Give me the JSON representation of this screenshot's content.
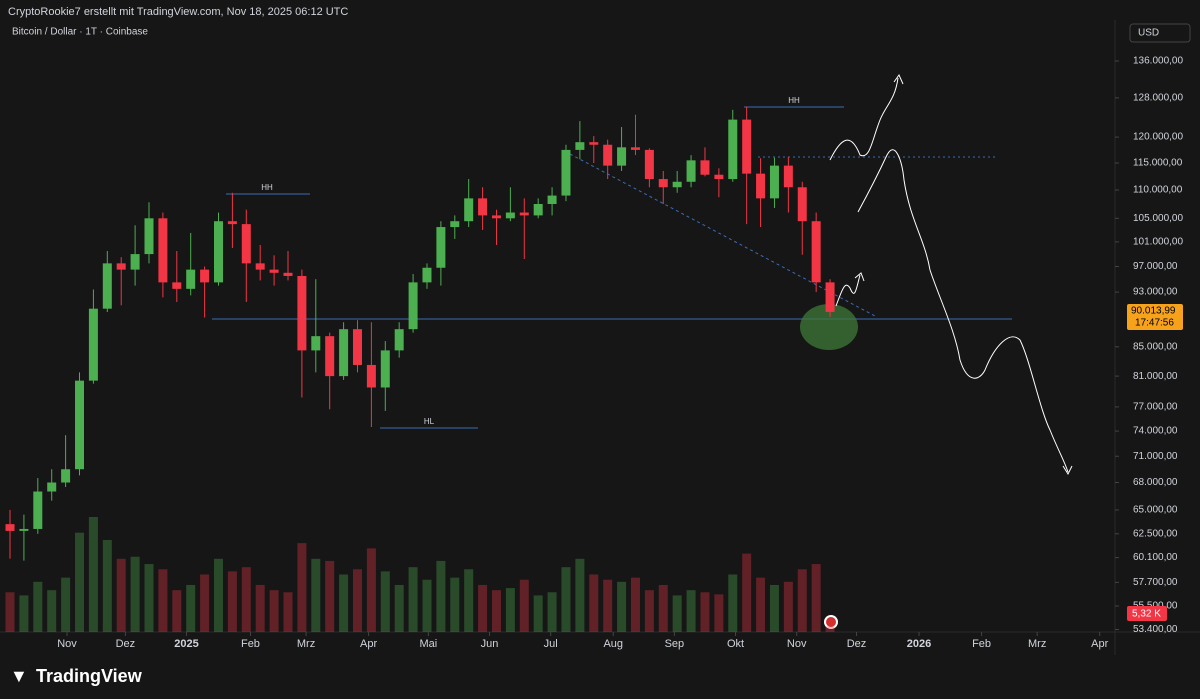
{
  "header": "CryptoRookie7 erstellt mit TradingView.com, Nov 18, 2025 06:12 UTC",
  "footer": "TradingView",
  "chart_data": {
    "type": "candlestick",
    "title": "Bitcoin / Dollar · 1T · Coinbase",
    "currency": "USD",
    "log_scale": true,
    "up_color": "#4caf50",
    "down_color": "#f23645",
    "open": [
      63500,
      62800,
      63000,
      67000,
      68000,
      69500,
      80400,
      90500,
      97500,
      96500,
      99000,
      105000,
      94500,
      93500,
      96500,
      94500,
      104500,
      104000,
      97500,
      96500,
      96000,
      95500,
      84500,
      86500,
      81000,
      87500,
      82500,
      79500,
      84500,
      87500,
      94500,
      96800,
      103500,
      104500,
      108500,
      105500,
      105000,
      106000,
      105500,
      107500,
      109000,
      117500,
      119000,
      118500,
      114500,
      118000,
      117500,
      112000,
      110500,
      111500,
      115500,
      112800,
      112000,
      123500,
      113000,
      108500,
      114500,
      110500,
      104500,
      94500
    ],
    "high": [
      65000,
      64500,
      68500,
      69500,
      73500,
      81500,
      93400,
      99500,
      98500,
      103800,
      107800,
      106000,
      99500,
      102500,
      97000,
      106000,
      109500,
      106500,
      100500,
      98800,
      99500,
      96500,
      95000,
      87000,
      88500,
      88800,
      88500,
      85800,
      88500,
      95800,
      97500,
      104500,
      105500,
      112000,
      110500,
      106500,
      110500,
      108500,
      108500,
      110500,
      118500,
      123200,
      120200,
      119500,
      122000,
      124500,
      117800,
      113500,
      113500,
      116500,
      118000,
      114000,
      125500,
      126200,
      115900,
      116000,
      116200,
      111500,
      106000,
      95000
    ],
    "low": [
      60000,
      59800,
      62500,
      66000,
      67500,
      68800,
      80000,
      90000,
      91000,
      94000,
      97500,
      92200,
      91500,
      92500,
      89200,
      94000,
      100000,
      91500,
      94800,
      94000,
      94800,
      78200,
      81500,
      76700,
      80500,
      81500,
      74500,
      76500,
      83500,
      87000,
      93500,
      94000,
      101500,
      103500,
      103000,
      100500,
      104500,
      98200,
      105000,
      105500,
      108000,
      115700,
      115000,
      112000,
      113500,
      116500,
      110500,
      107500,
      109500,
      110500,
      112500,
      108700,
      111500,
      104000,
      103500,
      106800,
      106000,
      98900,
      93000,
      89300
    ],
    "close": [
      62800,
      63000,
      67000,
      68000,
      69500,
      80400,
      90500,
      97500,
      96500,
      99000,
      105000,
      94500,
      93500,
      96500,
      94500,
      104500,
      104000,
      97500,
      96500,
      96000,
      95500,
      84500,
      86500,
      81000,
      87500,
      82500,
      79500,
      84500,
      87500,
      94500,
      96800,
      103500,
      104500,
      108500,
      105500,
      105000,
      106000,
      105500,
      107500,
      109000,
      117500,
      119000,
      118500,
      114500,
      118000,
      117500,
      112000,
      110500,
      111500,
      115500,
      112800,
      112000,
      123500,
      113000,
      108500,
      114500,
      110500,
      104500,
      94500,
      90013.99
    ],
    "volume": [
      38,
      35,
      48,
      40,
      52,
      95,
      110,
      88,
      70,
      72,
      65,
      60,
      40,
      45,
      55,
      70,
      58,
      62,
      45,
      40,
      38,
      85,
      70,
      68,
      55,
      60,
      80,
      58,
      45,
      62,
      50,
      68,
      52,
      60,
      45,
      40,
      42,
      50,
      35,
      38,
      62,
      70,
      55,
      50,
      48,
      52,
      40,
      45,
      35,
      40,
      38,
      36,
      55,
      75,
      52,
      45,
      48,
      60,
      65,
      5.32
    ],
    "volume_last_label": "5,32 K",
    "last_price_label": "90.013,99",
    "countdown": "17:47:56",
    "xlim": [
      -0.72,
      79.5
    ],
    "xticks": [
      {
        "value": 4.1,
        "label": "Nov"
      },
      {
        "value": 8.3,
        "label": "Dez"
      },
      {
        "value": 12.7,
        "label": "2025"
      },
      {
        "value": 17.3,
        "label": "Feb"
      },
      {
        "value": 21.3,
        "label": "Mrz"
      },
      {
        "value": 25.8,
        "label": "Apr"
      },
      {
        "value": 30.1,
        "label": "Mai"
      },
      {
        "value": 34.5,
        "label": "Jun"
      },
      {
        "value": 38.9,
        "label": "Jul"
      },
      {
        "value": 43.4,
        "label": "Aug"
      },
      {
        "value": 47.8,
        "label": "Sep"
      },
      {
        "value": 52.2,
        "label": "Okt"
      },
      {
        "value": 56.6,
        "label": "Nov"
      },
      {
        "value": 60.9,
        "label": "Dez"
      },
      {
        "value": 65.4,
        "label": "2026"
      },
      {
        "value": 69.9,
        "label": "Feb"
      },
      {
        "value": 73.9,
        "label": "Mrz"
      },
      {
        "value": 78.4,
        "label": "Apr"
      }
    ],
    "ylim": [
      53180,
      145480
    ],
    "yticks": [
      {
        "value": 136000,
        "label": "136.000,00"
      },
      {
        "value": 128000,
        "label": "128.000,00"
      },
      {
        "value": 120000,
        "label": "120.000,00"
      },
      {
        "value": 115000,
        "label": "115.000,00"
      },
      {
        "value": 110000,
        "label": "110.000,00"
      },
      {
        "value": 105000,
        "label": "105.000,00"
      },
      {
        "value": 101000,
        "label": "101.000,00"
      },
      {
        "value": 97000,
        "label": "97.000,00"
      },
      {
        "value": 93000,
        "label": "93.000,00"
      },
      {
        "value": 85000,
        "label": "85.000,00"
      },
      {
        "value": 81000,
        "label": "81.000,00"
      },
      {
        "value": 77000,
        "label": "77.000,00"
      },
      {
        "value": 74000,
        "label": "74.000,00"
      },
      {
        "value": 71000,
        "label": "71.000,00"
      },
      {
        "value": 68000,
        "label": "68.000,00"
      },
      {
        "value": 65000,
        "label": "65.000,00"
      },
      {
        "value": 62500,
        "label": "62.500,00"
      },
      {
        "value": 60100,
        "label": "60.100,00"
      },
      {
        "value": 57700,
        "label": "57.700,00"
      },
      {
        "value": 55500,
        "label": "55.500,00"
      },
      {
        "value": 53400,
        "label": "53.400,00"
      }
    ],
    "annotations": [
      "HH",
      "HH",
      "HL"
    ]
  }
}
